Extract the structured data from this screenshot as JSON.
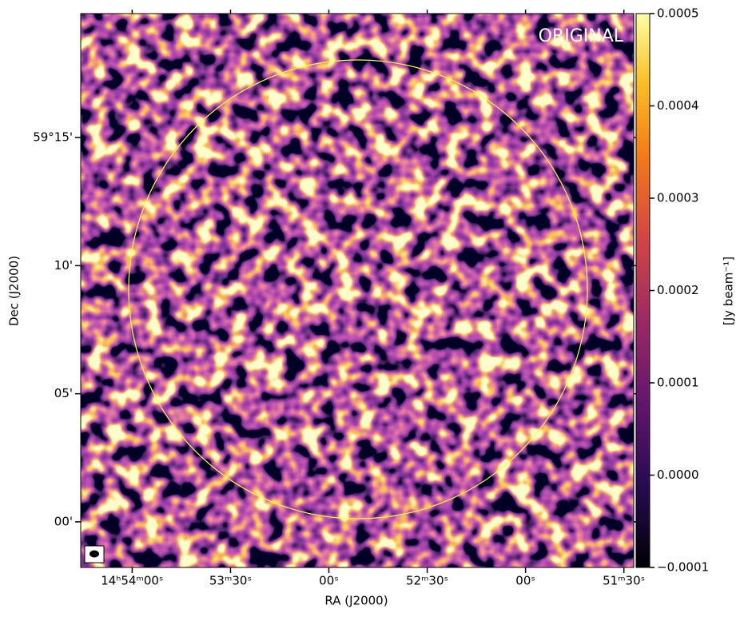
{
  "chart_data": {
    "type": "image",
    "x_label": "RA (J2000)",
    "y_label": "Dec (J2000)",
    "annotation": "ORIGINAL",
    "colorbar_label": "[Jy beam⁻¹]",
    "xlim": [
      3255.7,
      3087.0
    ],
    "xticks": [
      {
        "value": 3240,
        "label": "14ʰ54ᵐ00ˢ"
      },
      {
        "value": 3210,
        "label": "53ᵐ30ˢ"
      },
      {
        "value": 3180,
        "label": "00ˢ"
      },
      {
        "value": 3150,
        "label": "52ᵐ30ˢ"
      },
      {
        "value": 3120,
        "label": "00ˢ"
      },
      {
        "value": 3090,
        "label": "51ᵐ30ˢ"
      }
    ],
    "ylim": [
      -1.78,
      19.84
    ],
    "yticks": [
      {
        "value": 15,
        "label": "59°15'"
      },
      {
        "value": 10,
        "label": "10'"
      },
      {
        "value": 5,
        "label": "05'"
      },
      {
        "value": 0,
        "label": "00'"
      }
    ],
    "clim": [
      -0.0001,
      0.0005
    ],
    "cticks": [
      {
        "value": -0.0001,
        "label": "−0.0001"
      },
      {
        "value": 0,
        "label": "0.0000"
      },
      0.0001,
      0.0002,
      0.0003,
      0.0004,
      0.0005
    ]
  }
}
